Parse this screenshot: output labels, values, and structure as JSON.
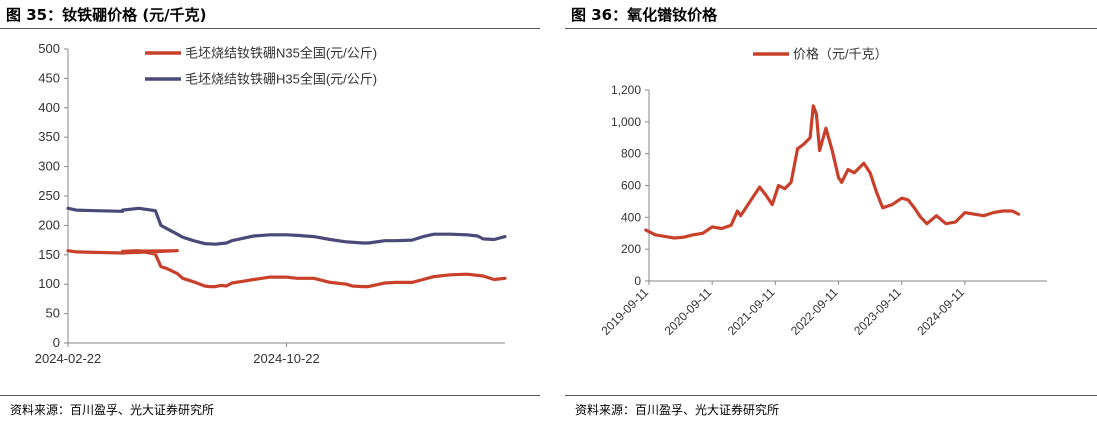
{
  "left": {
    "title": "图 35：钕铁硼价格 (元/千克)",
    "source": "资料来源：百川盈孚、光大证券研究所"
  },
  "right": {
    "title": "图 36：氧化镨钕价格",
    "source": "资料来源：百川盈孚、光大证券研究所"
  },
  "colors": {
    "series1": "#c9402a",
    "series2": "#4a4a78",
    "axis": "#888888",
    "text": "#333333"
  },
  "chart_data": [
    {
      "type": "line",
      "title": "钕铁硼价格 (元/千克)",
      "ylim": [
        0,
        500
      ],
      "yticks": [
        "0",
        "50",
        "100",
        "150",
        "200",
        "250",
        "300",
        "350",
        "400",
        "450",
        "500"
      ],
      "xticks": [
        "2024-02-22",
        "2024-10-22"
      ],
      "xrange": [
        0,
        16
      ],
      "xtick_pos": [
        0,
        8
      ],
      "legend_position": "top-center",
      "series": [
        {
          "name": "毛坯烧结钕铁硼N35全国(元/公斤)",
          "color_key": "series1",
          "x": [
            0,
            0.3,
            1,
            2,
            3,
            4,
            2.0,
            2.6,
            2.8,
            3.2,
            3.4,
            3.6,
            4.0,
            4.2,
            4.6,
            5.0,
            5.2,
            5.4,
            5.6,
            5.8,
            6.0,
            6.4,
            6.8,
            7.4,
            8.0,
            8.4,
            9.0,
            9.6,
            10.2,
            10.4,
            10.8,
            11.0,
            11.6,
            12.0,
            12.6,
            13.0,
            13.4,
            14.0,
            14.6,
            15.0,
            15.2,
            15.6,
            16.0
          ],
          "y": [
            157,
            155,
            154,
            153,
            155,
            157,
            156,
            157,
            155,
            151,
            130,
            127,
            118,
            110,
            104,
            97,
            96,
            96,
            98,
            97,
            102,
            105,
            108,
            112,
            112,
            110,
            110,
            103,
            100,
            97,
            96,
            96,
            102,
            103,
            103,
            108,
            113,
            116,
            117,
            115,
            114,
            108,
            110
          ]
        },
        {
          "name": "毛坯烧结钕铁硼H35全国(元/公斤)",
          "color_key": "series2",
          "x": [
            0,
            0.3,
            1,
            2,
            2.0,
            2.6,
            3.2,
            3.4,
            3.6,
            4.0,
            4.2,
            4.6,
            5.0,
            5.4,
            5.8,
            6.0,
            6.4,
            6.8,
            7.4,
            8.0,
            8.4,
            9.0,
            9.6,
            10.2,
            10.8,
            11.0,
            11.6,
            12.0,
            12.6,
            13.0,
            13.4,
            14.0,
            14.6,
            15.0,
            15.2,
            15.6,
            16.0
          ],
          "y": [
            229,
            226,
            225,
            224,
            226,
            229,
            225,
            200,
            195,
            185,
            180,
            174,
            169,
            168,
            170,
            174,
            178,
            182,
            184,
            184,
            183,
            181,
            176,
            172,
            170,
            170,
            174,
            174,
            175,
            181,
            185,
            185,
            184,
            182,
            177,
            176,
            181
          ]
        }
      ]
    },
    {
      "type": "line",
      "title": "氧化镨钕价格",
      "ylim": [
        0,
        1200
      ],
      "yticks": [
        "0",
        "200",
        "400",
        "600",
        "800",
        "1,000",
        "1,200"
      ],
      "xticks": [
        "2019-09-11",
        "2020-09-11",
        "2021-09-11",
        "2022-09-11",
        "2023-09-11",
        "2024-09-11"
      ],
      "xrange": [
        0,
        6.3
      ],
      "xtick_pos": [
        0,
        1,
        2,
        3,
        4,
        5
      ],
      "legend_position": "top-center",
      "series": [
        {
          "name": "价格（元/千克）",
          "color_key": "series1",
          "x": [
            -0.05,
            0.1,
            0.25,
            0.4,
            0.55,
            0.7,
            0.85,
            1.0,
            1.15,
            1.3,
            1.4,
            1.45,
            1.5,
            1.6,
            1.75,
            1.85,
            1.95,
            2.05,
            2.15,
            2.25,
            2.35,
            2.45,
            2.55,
            2.6,
            2.65,
            2.7,
            2.8,
            2.9,
            3.0,
            3.05,
            3.15,
            3.25,
            3.4,
            3.5,
            3.6,
            3.7,
            3.85,
            4.0,
            4.1,
            4.2,
            4.3,
            4.4,
            4.55,
            4.7,
            4.85,
            5.0,
            5.15,
            5.3,
            5.45,
            5.6,
            5.75,
            5.85
          ],
          "y": [
            320,
            290,
            280,
            270,
            275,
            290,
            300,
            340,
            330,
            350,
            440,
            410,
            440,
            500,
            590,
            540,
            480,
            600,
            580,
            620,
            830,
            860,
            900,
            1100,
            1050,
            820,
            960,
            820,
            650,
            620,
            700,
            680,
            740,
            680,
            560,
            460,
            480,
            520,
            510,
            460,
            400,
            360,
            410,
            360,
            370,
            430,
            420,
            410,
            430,
            440,
            440,
            420
          ]
        }
      ]
    }
  ]
}
